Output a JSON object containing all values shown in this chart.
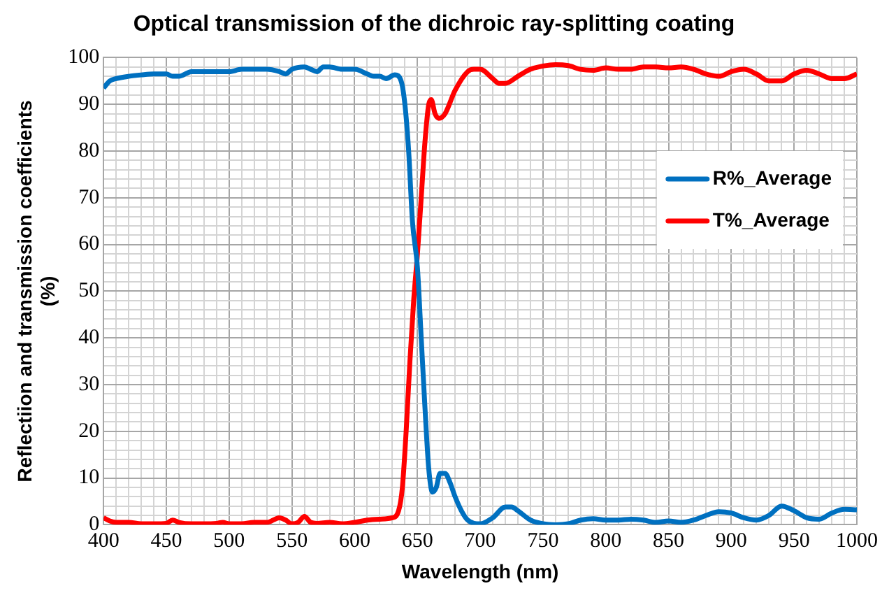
{
  "chart_data": {
    "type": "line",
    "title": "Optical transmission of the dichroic ray-splitting coating",
    "xlabel": "Wavelength (nm)",
    "ylabel": "Reflectiion and transmission coefficients\n(%)",
    "xlim": [
      400,
      1000
    ],
    "ylim": [
      0,
      100
    ],
    "xticks": [
      400,
      {
        "value": 410,
        "label": null
      },
      {
        "value": 420,
        "label": null
      },
      {
        "value": 430,
        "label": null
      },
      {
        "value": 440,
        "label": null
      },
      450,
      {
        "value": 460,
        "label": null
      },
      {
        "value": 470,
        "label": null
      },
      {
        "value": 480,
        "label": null
      },
      {
        "value": 490,
        "label": null
      },
      500,
      {
        "value": 510,
        "label": null
      },
      {
        "value": 520,
        "label": null
      },
      {
        "value": 530,
        "label": null
      },
      {
        "value": 540,
        "label": null
      },
      550,
      {
        "value": 560,
        "label": null
      },
      {
        "value": 570,
        "label": null
      },
      {
        "value": 580,
        "label": null
      },
      {
        "value": 590,
        "label": null
      },
      600,
      {
        "value": 610,
        "label": null
      },
      {
        "value": 620,
        "label": null
      },
      {
        "value": 630,
        "label": null
      },
      {
        "value": 640,
        "label": null
      },
      650,
      {
        "value": 660,
        "label": null
      },
      {
        "value": 670,
        "label": null
      },
      {
        "value": 680,
        "label": null
      },
      {
        "value": 690,
        "label": null
      },
      700,
      {
        "value": 710,
        "label": null
      },
      {
        "value": 720,
        "label": null
      },
      {
        "value": 730,
        "label": null
      },
      {
        "value": 740,
        "label": null
      },
      750,
      {
        "value": 760,
        "label": null
      },
      {
        "value": 770,
        "label": null
      },
      {
        "value": 780,
        "label": null
      },
      {
        "value": 790,
        "label": null
      },
      800,
      {
        "value": 810,
        "label": null
      },
      {
        "value": 820,
        "label": null
      },
      {
        "value": 830,
        "label": null
      },
      {
        "value": 840,
        "label": null
      },
      850,
      {
        "value": 860,
        "label": null
      },
      {
        "value": 870,
        "label": null
      },
      {
        "value": 880,
        "label": null
      },
      {
        "value": 890,
        "label": null
      },
      900,
      {
        "value": 910,
        "label": null
      },
      {
        "value": 920,
        "label": null
      },
      {
        "value": 930,
        "label": null
      },
      {
        "value": 940,
        "label": null
      },
      950,
      {
        "value": 960,
        "label": null
      },
      {
        "value": 970,
        "label": null
      },
      {
        "value": 980,
        "label": null
      },
      {
        "value": 990,
        "label": null
      },
      1000
    ],
    "yticks": [
      0,
      {
        "value": 2,
        "label": null
      },
      {
        "value": 4,
        "label": null
      },
      {
        "value": 6,
        "label": null
      },
      {
        "value": 8,
        "label": null
      },
      10,
      {
        "value": 12,
        "label": null
      },
      {
        "value": 14,
        "label": null
      },
      {
        "value": 16,
        "label": null
      },
      {
        "value": 18,
        "label": null
      },
      20,
      {
        "value": 22,
        "label": null
      },
      {
        "value": 24,
        "label": null
      },
      {
        "value": 26,
        "label": null
      },
      {
        "value": 28,
        "label": null
      },
      30,
      {
        "value": 32,
        "label": null
      },
      {
        "value": 34,
        "label": null
      },
      {
        "value": 36,
        "label": null
      },
      {
        "value": 38,
        "label": null
      },
      40,
      {
        "value": 42,
        "label": null
      },
      {
        "value": 44,
        "label": null
      },
      {
        "value": 46,
        "label": null
      },
      {
        "value": 48,
        "label": null
      },
      50,
      {
        "value": 52,
        "label": null
      },
      {
        "value": 54,
        "label": null
      },
      {
        "value": 56,
        "label": null
      },
      {
        "value": 58,
        "label": null
      },
      60,
      {
        "value": 62,
        "label": null
      },
      {
        "value": 64,
        "label": null
      },
      {
        "value": 66,
        "label": null
      },
      {
        "value": 68,
        "label": null
      },
      70,
      {
        "value": 72,
        "label": null
      },
      {
        "value": 74,
        "label": null
      },
      {
        "value": 76,
        "label": null
      },
      {
        "value": 78,
        "label": null
      },
      80,
      {
        "value": 82,
        "label": null
      },
      {
        "value": 84,
        "label": null
      },
      {
        "value": 86,
        "label": null
      },
      {
        "value": 88,
        "label": null
      },
      90,
      {
        "value": 92,
        "label": null
      },
      {
        "value": 94,
        "label": null
      },
      {
        "value": 96,
        "label": null
      },
      {
        "value": 98,
        "label": null
      },
      100
    ],
    "grid": true,
    "legend": "right",
    "marker": "none",
    "line_style": "solid",
    "series": [
      {
        "name": "R%_Average",
        "color": "#0070c0",
        "x": [
          400,
          405,
          410,
          420,
          430,
          440,
          450,
          455,
          460,
          470,
          480,
          490,
          500,
          510,
          520,
          530,
          540,
          545,
          550,
          560,
          565,
          570,
          575,
          580,
          590,
          600,
          610,
          615,
          620,
          625,
          632,
          637,
          640,
          643,
          646,
          650,
          653,
          656,
          659,
          662,
          665,
          668,
          672,
          676,
          680,
          685,
          690,
          700,
          710,
          720,
          725,
          730,
          740,
          750,
          760,
          770,
          780,
          790,
          800,
          810,
          820,
          830,
          840,
          850,
          860,
          870,
          880,
          890,
          900,
          910,
          920,
          930,
          940,
          950,
          960,
          970,
          980,
          990,
          1000
        ],
        "values": [
          93.5,
          95,
          95.5,
          96,
          96.3,
          96.5,
          96.5,
          96,
          96,
          97,
          97,
          97,
          97,
          97.5,
          97.5,
          97.5,
          97,
          96.5,
          97.5,
          98,
          97.5,
          97,
          98,
          98,
          97.5,
          97.5,
          96.5,
          96,
          96,
          95.5,
          96.3,
          95,
          90,
          80,
          65,
          55,
          40,
          25,
          12,
          7,
          8,
          11,
          11,
          9,
          6,
          3,
          1,
          0.2,
          1.5,
          3.8,
          3.8,
          3,
          1,
          0.2,
          0,
          0.2,
          1,
          1.3,
          1,
          1,
          1.2,
          1,
          0.5,
          0.8,
          0.5,
          1,
          2,
          2.8,
          2.5,
          1.5,
          1,
          2,
          4,
          3,
          1.5,
          1.2,
          2.5,
          3.3,
          3.2
        ]
      },
      {
        "name": "T%_Average",
        "color": "#ff0000",
        "x": [
          400,
          405,
          410,
          420,
          430,
          440,
          450,
          455,
          460,
          470,
          480,
          490,
          495,
          500,
          510,
          520,
          530,
          540,
          545,
          550,
          555,
          560,
          565,
          570,
          580,
          590,
          600,
          610,
          620,
          630,
          635,
          638,
          641,
          644,
          647,
          650,
          653,
          656,
          659,
          661,
          664,
          667,
          672,
          680,
          690,
          695,
          700,
          710,
          715,
          720,
          730,
          740,
          750,
          760,
          770,
          780,
          790,
          800,
          810,
          820,
          830,
          840,
          850,
          860,
          870,
          880,
          890,
          900,
          910,
          920,
          930,
          940,
          950,
          960,
          970,
          980,
          990,
          1000
        ],
        "values": [
          1.5,
          0.8,
          0.5,
          0.5,
          0.2,
          0.2,
          0.3,
          1,
          0.5,
          0.2,
          0.2,
          0.3,
          0.5,
          0.2,
          0.2,
          0.5,
          0.5,
          1.5,
          1,
          0.2,
          0.5,
          1.8,
          0.5,
          0.3,
          0.5,
          0.2,
          0.5,
          1,
          1.2,
          1.5,
          3,
          8,
          20,
          35,
          48,
          58,
          70,
          82,
          90,
          91,
          88,
          87,
          88,
          93,
          97,
          97.5,
          97.5,
          95.5,
          94.5,
          94.5,
          96,
          97.5,
          98.2,
          98.5,
          98.3,
          97.5,
          97.3,
          97.8,
          97.5,
          97.5,
          98,
          98,
          97.8,
          98,
          97.5,
          96.5,
          96,
          97,
          97.5,
          96.5,
          95,
          95,
          96.5,
          97.3,
          96.5,
          95.5,
          95.5,
          96.5
        ]
      }
    ]
  }
}
